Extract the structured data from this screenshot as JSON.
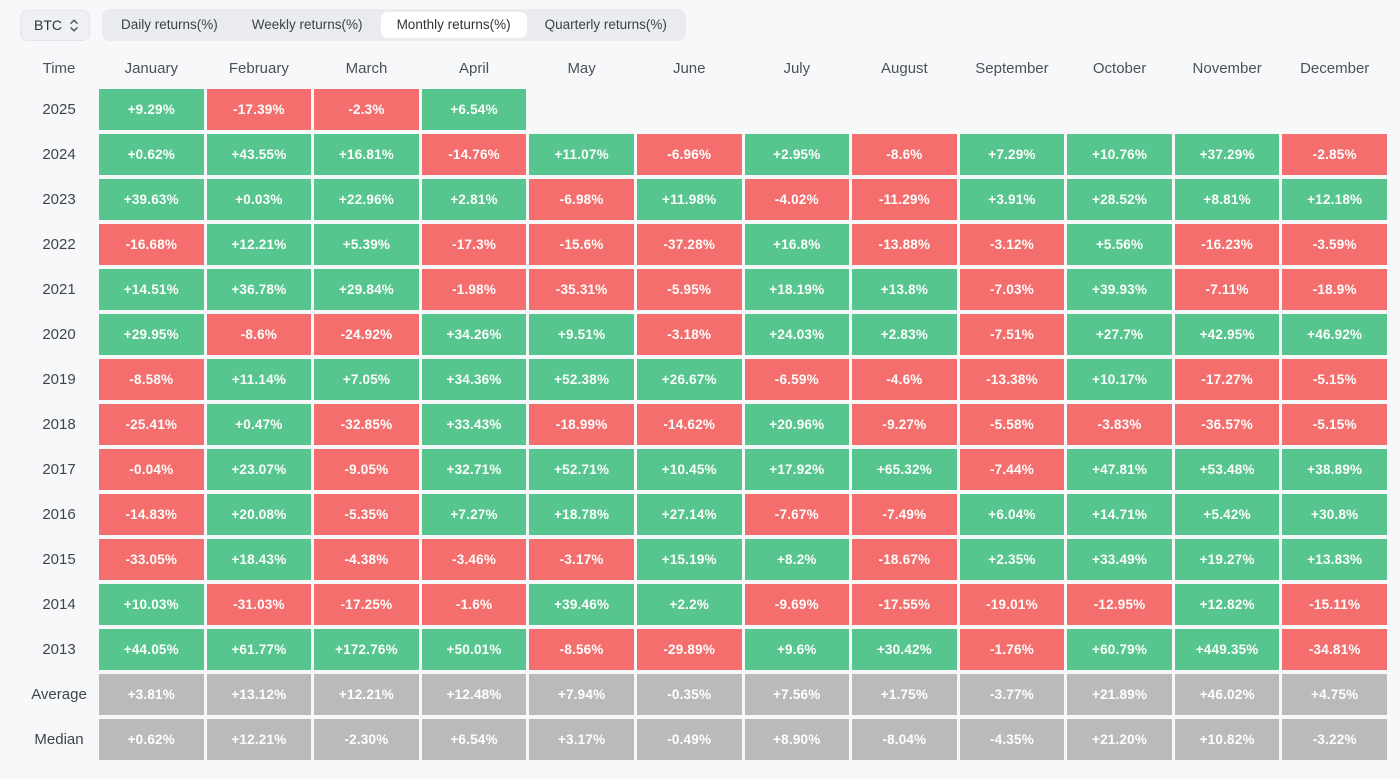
{
  "toolbar": {
    "asset_selector": {
      "value": "BTC"
    },
    "tabs": [
      {
        "label": "Daily returns(%)",
        "active": false
      },
      {
        "label": "Weekly returns(%)",
        "active": false
      },
      {
        "label": "Monthly returns(%)",
        "active": true
      },
      {
        "label": "Quarterly returns(%)",
        "active": false
      }
    ]
  },
  "chart_data": {
    "type": "heatmap",
    "title": "Monthly returns(%)",
    "row_header": "Time",
    "columns": [
      "January",
      "February",
      "March",
      "April",
      "May",
      "June",
      "July",
      "August",
      "September",
      "October",
      "November",
      "December"
    ],
    "rows": [
      {
        "label": "2025",
        "kind": "year",
        "values": [
          "+9.29%",
          "-17.39%",
          "-2.3%",
          "+6.54%",
          "",
          "",
          "",
          "",
          "",
          "",
          "",
          ""
        ]
      },
      {
        "label": "2024",
        "kind": "year",
        "values": [
          "+0.62%",
          "+43.55%",
          "+16.81%",
          "-14.76%",
          "+11.07%",
          "-6.96%",
          "+2.95%",
          "-8.6%",
          "+7.29%",
          "+10.76%",
          "+37.29%",
          "-2.85%"
        ]
      },
      {
        "label": "2023",
        "kind": "year",
        "values": [
          "+39.63%",
          "+0.03%",
          "+22.96%",
          "+2.81%",
          "-6.98%",
          "+11.98%",
          "-4.02%",
          "-11.29%",
          "+3.91%",
          "+28.52%",
          "+8.81%",
          "+12.18%"
        ]
      },
      {
        "label": "2022",
        "kind": "year",
        "values": [
          "-16.68%",
          "+12.21%",
          "+5.39%",
          "-17.3%",
          "-15.6%",
          "-37.28%",
          "+16.8%",
          "-13.88%",
          "-3.12%",
          "+5.56%",
          "-16.23%",
          "-3.59%"
        ]
      },
      {
        "label": "2021",
        "kind": "year",
        "values": [
          "+14.51%",
          "+36.78%",
          "+29.84%",
          "-1.98%",
          "-35.31%",
          "-5.95%",
          "+18.19%",
          "+13.8%",
          "-7.03%",
          "+39.93%",
          "-7.11%",
          "-18.9%"
        ]
      },
      {
        "label": "2020",
        "kind": "year",
        "values": [
          "+29.95%",
          "-8.6%",
          "-24.92%",
          "+34.26%",
          "+9.51%",
          "-3.18%",
          "+24.03%",
          "+2.83%",
          "-7.51%",
          "+27.7%",
          "+42.95%",
          "+46.92%"
        ]
      },
      {
        "label": "2019",
        "kind": "year",
        "values": [
          "-8.58%",
          "+11.14%",
          "+7.05%",
          "+34.36%",
          "+52.38%",
          "+26.67%",
          "-6.59%",
          "-4.6%",
          "-13.38%",
          "+10.17%",
          "-17.27%",
          "-5.15%"
        ]
      },
      {
        "label": "2018",
        "kind": "year",
        "values": [
          "-25.41%",
          "+0.47%",
          "-32.85%",
          "+33.43%",
          "-18.99%",
          "-14.62%",
          "+20.96%",
          "-9.27%",
          "-5.58%",
          "-3.83%",
          "-36.57%",
          "-5.15%"
        ]
      },
      {
        "label": "2017",
        "kind": "year",
        "values": [
          "-0.04%",
          "+23.07%",
          "-9.05%",
          "+32.71%",
          "+52.71%",
          "+10.45%",
          "+17.92%",
          "+65.32%",
          "-7.44%",
          "+47.81%",
          "+53.48%",
          "+38.89%"
        ]
      },
      {
        "label": "2016",
        "kind": "year",
        "values": [
          "-14.83%",
          "+20.08%",
          "-5.35%",
          "+7.27%",
          "+18.78%",
          "+27.14%",
          "-7.67%",
          "-7.49%",
          "+6.04%",
          "+14.71%",
          "+5.42%",
          "+30.8%"
        ]
      },
      {
        "label": "2015",
        "kind": "year",
        "values": [
          "-33.05%",
          "+18.43%",
          "-4.38%",
          "-3.46%",
          "-3.17%",
          "+15.19%",
          "+8.2%",
          "-18.67%",
          "+2.35%",
          "+33.49%",
          "+19.27%",
          "+13.83%"
        ]
      },
      {
        "label": "2014",
        "kind": "year",
        "values": [
          "+10.03%",
          "-31.03%",
          "-17.25%",
          "-1.6%",
          "+39.46%",
          "+2.2%",
          "-9.69%",
          "-17.55%",
          "-19.01%",
          "-12.95%",
          "+12.82%",
          "-15.11%"
        ]
      },
      {
        "label": "2013",
        "kind": "year",
        "values": [
          "+44.05%",
          "+61.77%",
          "+172.76%",
          "+50.01%",
          "-8.56%",
          "-29.89%",
          "+9.6%",
          "+30.42%",
          "-1.76%",
          "+60.79%",
          "+449.35%",
          "-34.81%"
        ]
      },
      {
        "label": "Average",
        "kind": "summary",
        "values": [
          "+3.81%",
          "+13.12%",
          "+12.21%",
          "+12.48%",
          "+7.94%",
          "-0.35%",
          "+7.56%",
          "+1.75%",
          "-3.77%",
          "+21.89%",
          "+46.02%",
          "+4.75%"
        ]
      },
      {
        "label": "Median",
        "kind": "summary",
        "values": [
          "+0.62%",
          "+12.21%",
          "-2.30%",
          "+6.54%",
          "+3.17%",
          "-0.49%",
          "+8.90%",
          "-8.04%",
          "-4.35%",
          "+21.20%",
          "+10.82%",
          "-3.22%"
        ]
      }
    ],
    "colors": {
      "positive": "#57c58e",
      "negative": "#f56e6e",
      "summary": "#bababa"
    }
  }
}
